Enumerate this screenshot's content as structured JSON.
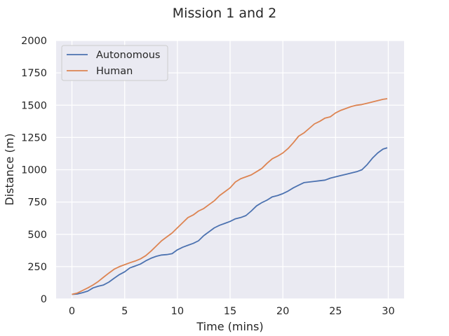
{
  "chart_data": {
    "type": "line",
    "title": "Mission 1 and 2",
    "xlabel": "Time (mins)",
    "ylabel": "Distance (m)",
    "xlim": [
      -1.5,
      31.5
    ],
    "ylim": [
      0,
      2000
    ],
    "xticks": [
      0,
      5,
      10,
      15,
      20,
      25,
      30
    ],
    "yticks": [
      0,
      250,
      500,
      750,
      1000,
      1250,
      1500,
      1750,
      2000
    ],
    "grid": true,
    "legend": "top-left",
    "series": [
      {
        "name": "Autonomous",
        "color": "#4c72b0",
        "x": [
          0,
          0.5,
          1,
          1.5,
          2,
          2.5,
          3,
          3.5,
          4,
          4.5,
          5,
          5.5,
          6,
          6.5,
          7,
          7.5,
          8,
          8.5,
          9,
          9.5,
          10,
          10.5,
          11,
          11.5,
          12,
          12.5,
          13,
          13.5,
          14,
          14.5,
          15,
          15.5,
          16,
          16.5,
          17,
          17.5,
          18,
          18.5,
          19,
          19.5,
          20,
          20.5,
          21,
          21.5,
          22,
          22.5,
          23,
          23.5,
          24,
          24.5,
          25,
          25.5,
          26,
          26.5,
          27,
          27.5,
          28,
          28.5,
          29,
          29.5,
          29.9
        ],
        "values": [
          35,
          38,
          48,
          60,
          85,
          98,
          108,
          130,
          160,
          188,
          210,
          240,
          255,
          270,
          295,
          315,
          330,
          340,
          343,
          350,
          380,
          400,
          415,
          430,
          450,
          490,
          520,
          550,
          570,
          585,
          600,
          620,
          630,
          645,
          680,
          720,
          745,
          765,
          790,
          800,
          815,
          835,
          860,
          880,
          900,
          905,
          910,
          915,
          920,
          935,
          945,
          955,
          965,
          975,
          985,
          1000,
          1040,
          1090,
          1130,
          1160,
          1170
        ]
      },
      {
        "name": "Human",
        "color": "#dd8452",
        "x": [
          0,
          0.5,
          1,
          1.5,
          2,
          2.5,
          3,
          3.5,
          4,
          4.5,
          5,
          5.5,
          6,
          6.5,
          7,
          7.5,
          8,
          8.5,
          9,
          9.5,
          10,
          10.5,
          11,
          11.5,
          12,
          12.5,
          13,
          13.5,
          14,
          14.5,
          15,
          15.5,
          16,
          16.5,
          17,
          17.5,
          18,
          18.5,
          19,
          19.5,
          20,
          20.5,
          21,
          21.5,
          22,
          22.5,
          23,
          23.5,
          24,
          24.5,
          25,
          25.5,
          26,
          26.5,
          27,
          27.5,
          28,
          28.5,
          29,
          29.5,
          29.9
        ],
        "values": [
          35,
          45,
          65,
          85,
          108,
          135,
          168,
          200,
          230,
          250,
          265,
          280,
          293,
          310,
          335,
          370,
          410,
          450,
          480,
          510,
          550,
          590,
          630,
          650,
          680,
          700,
          730,
          760,
          800,
          830,
          860,
          905,
          930,
          945,
          960,
          985,
          1010,
          1050,
          1085,
          1105,
          1130,
          1165,
          1210,
          1260,
          1285,
          1320,
          1355,
          1375,
          1400,
          1410,
          1440,
          1460,
          1475,
          1490,
          1500,
          1505,
          1515,
          1525,
          1535,
          1545,
          1550
        ]
      }
    ]
  }
}
